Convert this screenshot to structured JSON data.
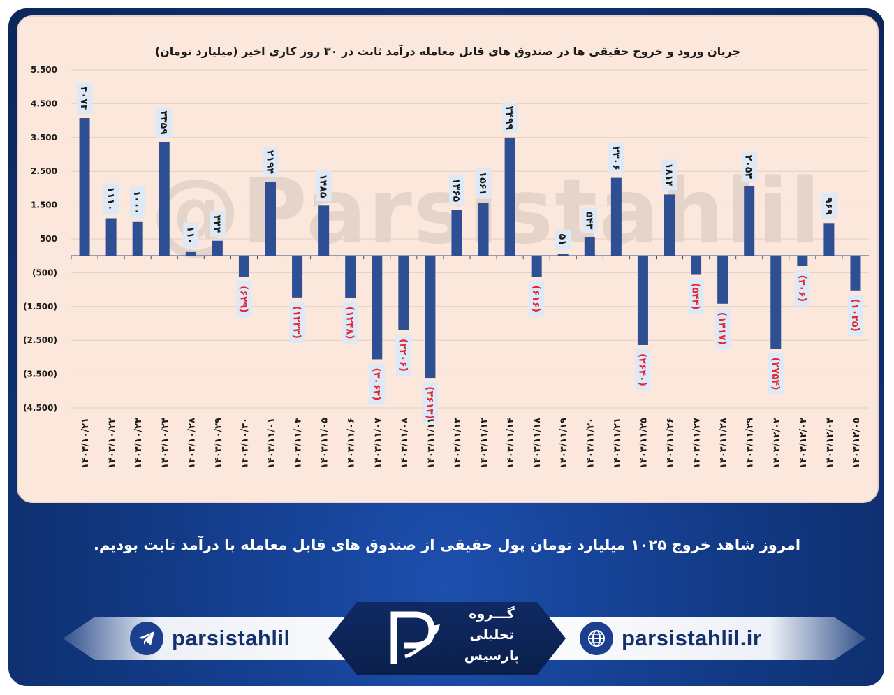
{
  "chart_data": {
    "type": "bar",
    "title": "جریان ورود و خروج حقیقی ها در صندوق های قابل معامله درآمد ثابت در ۳۰ روز کاری اخیر (میلیارد تومان)",
    "categories": [
      "۱۴۰۳/۱۰/۲۱",
      "۱۴۰۳/۱۰/۲۲",
      "۱۴۰۳/۱۰/۲۳",
      "۱۴۰۳/۱۰/۲۴",
      "۱۴۰۳/۱۰/۲۸",
      "۱۴۰۳/۱۰/۲۹",
      "۱۴۰۳/۱۰/۳۰",
      "۱۴۰۳/۱۱/۰۱",
      "۱۴۰۳/۱۱/۰۴",
      "۱۴۰۳/۱۱/۰۵",
      "۱۴۰۳/۱۱/۰۶",
      "۱۴۰۳/۱۱/۰۷",
      "۱۴۰۳/۱۱/۰۸",
      "۱۴۰۳/۱۱/۱۱",
      "۱۴۰۳/۱۱/۱۲",
      "۱۴۰۳/۱۱/۱۳",
      "۱۴۰۳/۱۱/۱۴",
      "۱۴۰۳/۱۱/۱۸",
      "۱۴۰۳/۱۱/۱۹",
      "۱۴۰۳/۱۱/۲۰",
      "۱۴۰۳/۱۱/۲۱",
      "۱۴۰۳/۱۱/۲۵",
      "۱۴۰۳/۱۱/۲۶",
      "۱۴۰۳/۱۱/۲۷",
      "۱۴۰۳/۱۱/۲۸",
      "۱۴۰۳/۱۱/۲۹",
      "۱۴۰۳/۱۲/۰۲",
      "۱۴۰۳/۱۲/۰۳",
      "۱۴۰۳/۱۲/۰۴",
      "۱۴۰۳/۱۲/۰۵"
    ],
    "values": [
      4074,
      1110,
      1000,
      3359,
      110,
      444,
      -629,
      2194,
      -1233,
      1485,
      -1248,
      -3063,
      -2206,
      -3613,
      1365,
      1561,
      3499,
      -616,
      51,
      543,
      2306,
      -2640,
      1814,
      -544,
      -1417,
      2053,
      -2754,
      -306,
      969,
      -1025
    ],
    "data_labels": [
      "۴۰۷۴",
      "۱۱۱۰",
      "۱۰۰۰",
      "۳۳۵۹",
      "۱۱۰",
      "۴۴۴",
      "(۶۲۹)",
      "۲۱۹۴",
      "(۱۲۳۳)",
      "۱۴۸۵",
      "(۱۲۴۸)",
      "(۳۰۶۳)",
      "(۲۲۰۶)",
      "(۳۶۱۳)",
      "۱۳۶۵",
      "۱۵۶۱",
      "۳۴۹۹",
      "(۶۱۶)",
      "۵۱",
      "۵۴۳",
      "۲۳۰۶",
      "(۲۶۴۰)",
      "۱۸۱۴",
      "(۵۴۴)",
      "(۱۴۱۷)",
      "۲۰۵۳",
      "(۲۷۵۴)",
      "(۳۰۶)",
      "۹۶۹",
      "(۱۰۲۵)"
    ],
    "y_ticks": [
      5500,
      4500,
      3500,
      2500,
      1500,
      500,
      -500,
      -1500,
      -2500,
      -3500,
      -4500
    ],
    "y_tick_labels": [
      "5.500",
      "4.500",
      "3.500",
      "2.500",
      "1.500",
      "500",
      "(500)",
      "(1.500)",
      "(2.500)",
      "(3.500)",
      "(4.500)"
    ],
    "ylim": [
      -4500,
      5500
    ],
    "grid": true,
    "xlabel": "",
    "ylabel": "",
    "colors": {
      "bar": "#2e4f93",
      "negative_label": "#e3262f",
      "positive_label": "#1a1a1a",
      "label_bg": "#dde9f6"
    }
  },
  "watermark": "@Parsistahlil",
  "caption": "امروز شاهد خروج ۱۰۲۵ میلیارد تومان پول حقیقی از صندوق های قابل معامله با درآمد ثابت بودیم.",
  "footer": {
    "telegram": "parsistahlil",
    "website": "parsistahlil.ir",
    "logo_lines": [
      "گـــروه",
      "تحلیلی",
      "پارسیس"
    ]
  }
}
